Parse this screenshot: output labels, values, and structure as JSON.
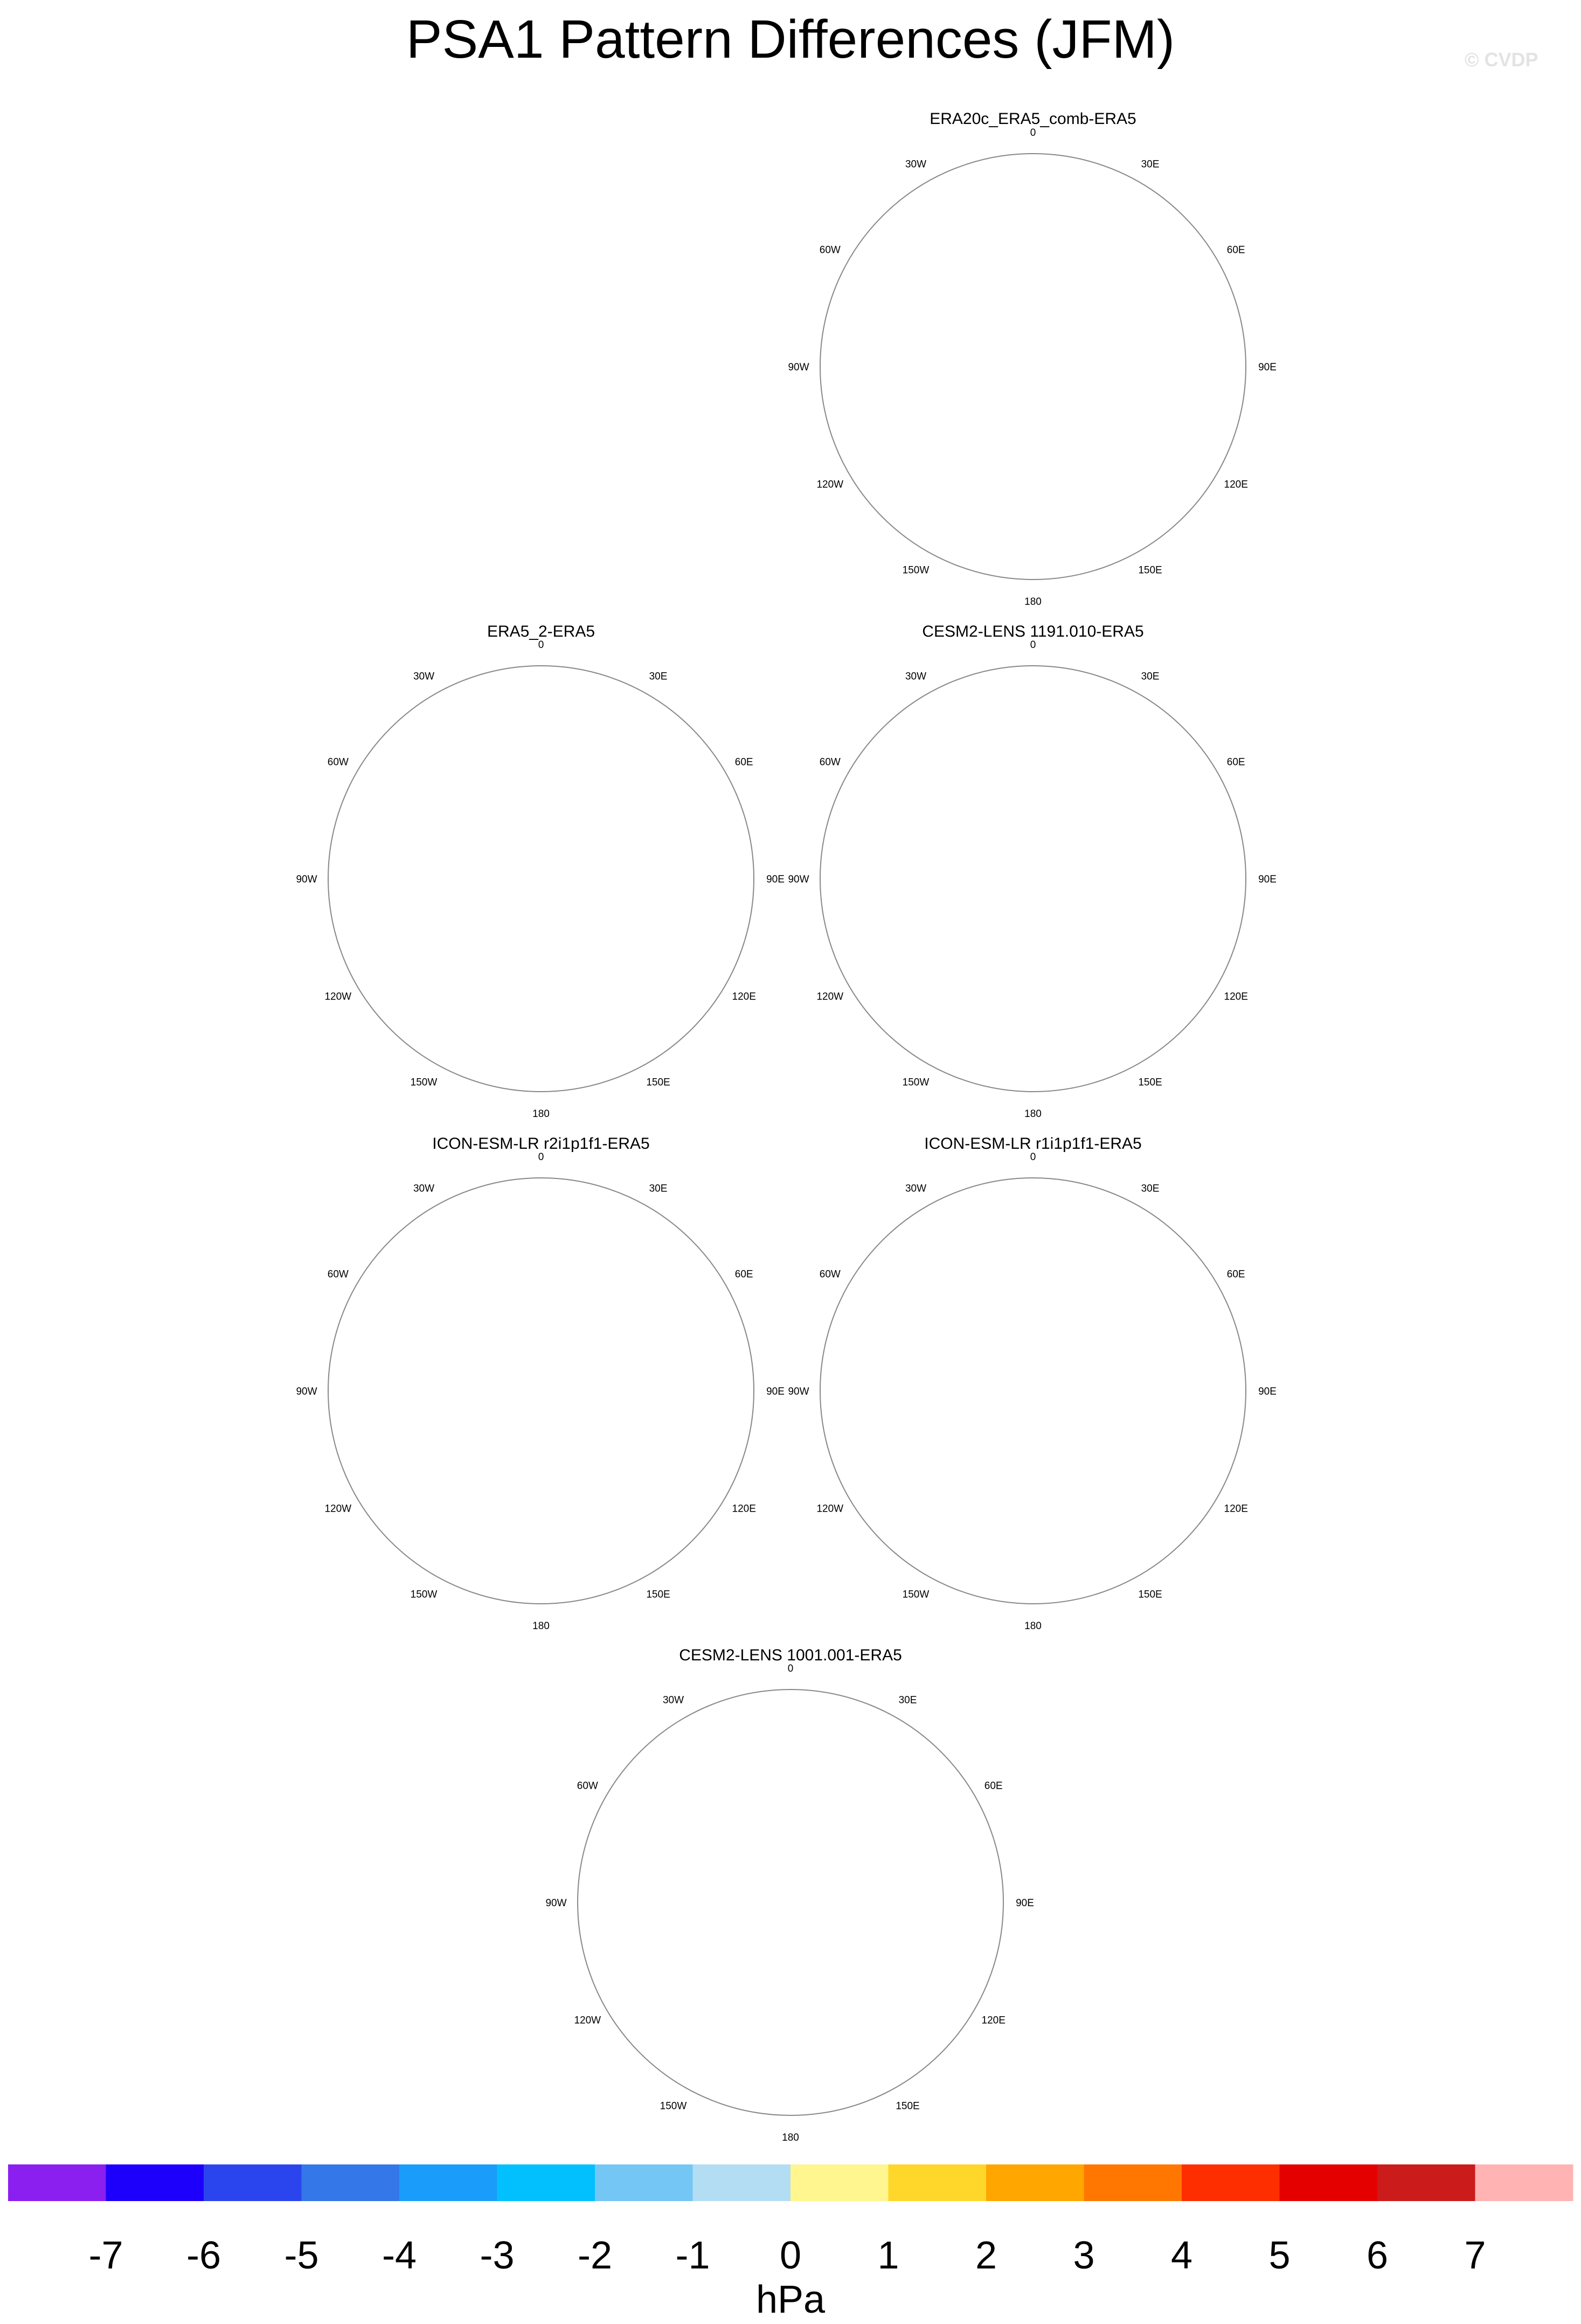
{
  "title": "PSA1 Pattern Differences (JFM)",
  "watermark": "© CVDP",
  "colors": {
    "ocean_neg1": "#b3ddf2",
    "pos1": "#fff68f",
    "pos2": "#ffd72a",
    "pos3": "#ffa600",
    "pos4": "#ff7700",
    "neg2": "#74c6f5",
    "coast": "#7a7a7a",
    "rim": "#888888"
  },
  "lon_labels": [
    "0",
    "30E",
    "60E",
    "90E",
    "120E",
    "150E",
    "180",
    "150W",
    "120W",
    "90W",
    "60W",
    "30W"
  ],
  "panels": [
    {
      "id": "era20c",
      "title": "ERA20c_ERA5_comb-ERA5"
    },
    {
      "id": "era5_2",
      "title": "ERA5_2-ERA5"
    },
    {
      "id": "cesm2_1191",
      "title": "CESM2-LENS 1191.010-ERA5"
    },
    {
      "id": "icon_r2",
      "title": "ICON-ESM-LR r2i1p1f1-ERA5"
    },
    {
      "id": "icon_r1",
      "title": "ICON-ESM-LR r1i1p1f1-ERA5"
    },
    {
      "id": "cesm2_1001",
      "title": "CESM2-LENS 1001.001-ERA5"
    }
  ],
  "colorbar": {
    "units": "hPa",
    "labels": [
      "-7",
      "-6",
      "-5",
      "-4",
      "-3",
      "-2",
      "-1",
      "0",
      "1",
      "2",
      "3",
      "4",
      "5",
      "6",
      "7"
    ],
    "colors": [
      "#8a1ff0",
      "#1d00fb",
      "#2b45ee",
      "#3477e8",
      "#1a9dfa",
      "#02c0fe",
      "#74c6f5",
      "#b3ddf2",
      "#fff68f",
      "#ffd72a",
      "#ffa600",
      "#ff7700",
      "#ff2e00",
      "#e50000",
      "#cc1b1b",
      "#ffb3b3"
    ]
  }
}
